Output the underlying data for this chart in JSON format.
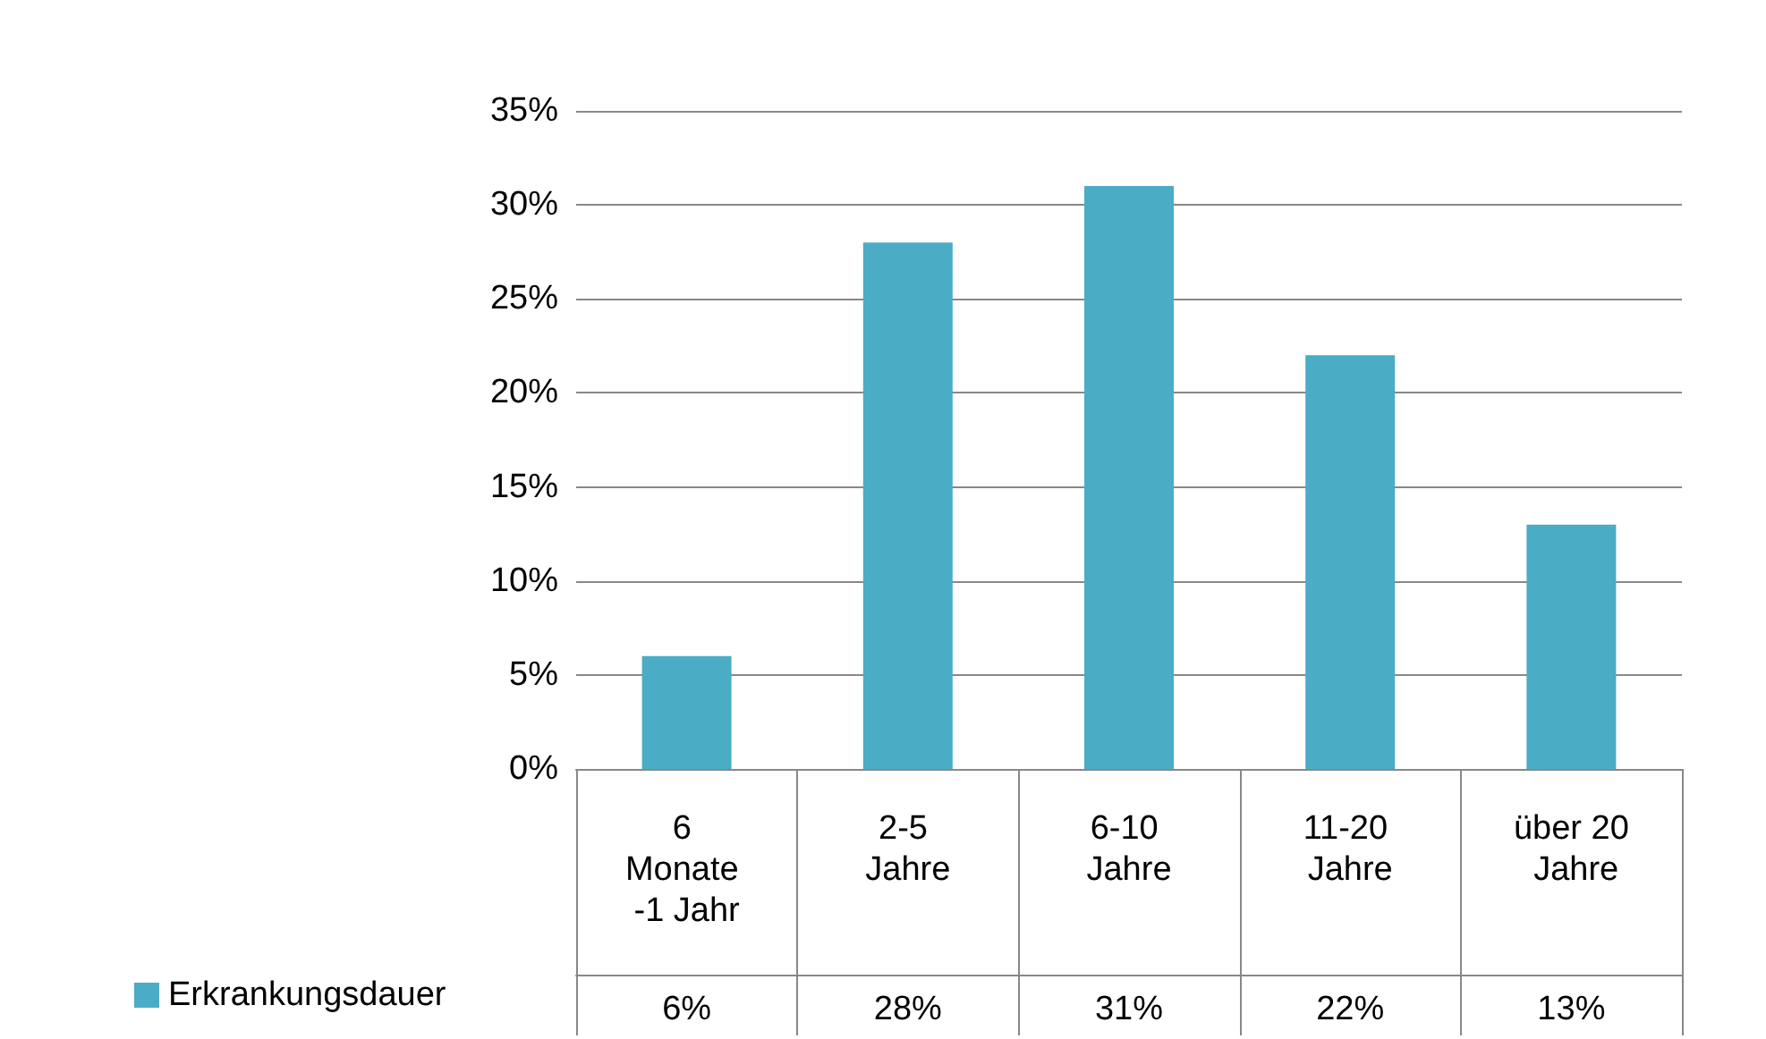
{
  "chart_data": {
    "type": "bar",
    "categories": [
      "6 Monate -1 Jahr",
      "2-5 Jahre",
      "6-10 Jahre",
      "11-20 Jahre",
      "über 20 Jahre"
    ],
    "series": [
      {
        "name": "Erkrankungsdauer",
        "color": "#4bacc6",
        "values": [
          6,
          28,
          31,
          22,
          13
        ],
        "value_labels": [
          "6%",
          "28%",
          "31%",
          "22%",
          "13%"
        ]
      }
    ],
    "ylim": [
      0,
      35
    ],
    "yticks": [
      {
        "value": 0,
        "label": "0%"
      },
      {
        "value": 5,
        "label": "5%"
      },
      {
        "value": 10,
        "label": "10%"
      },
      {
        "value": 15,
        "label": "15%"
      },
      {
        "value": 20,
        "label": "20%"
      },
      {
        "value": 25,
        "label": "25%"
      },
      {
        "value": 30,
        "label": "30%"
      },
      {
        "value": 35,
        "label": "35%"
      }
    ],
    "grid": true,
    "legend": "bottom left"
  }
}
